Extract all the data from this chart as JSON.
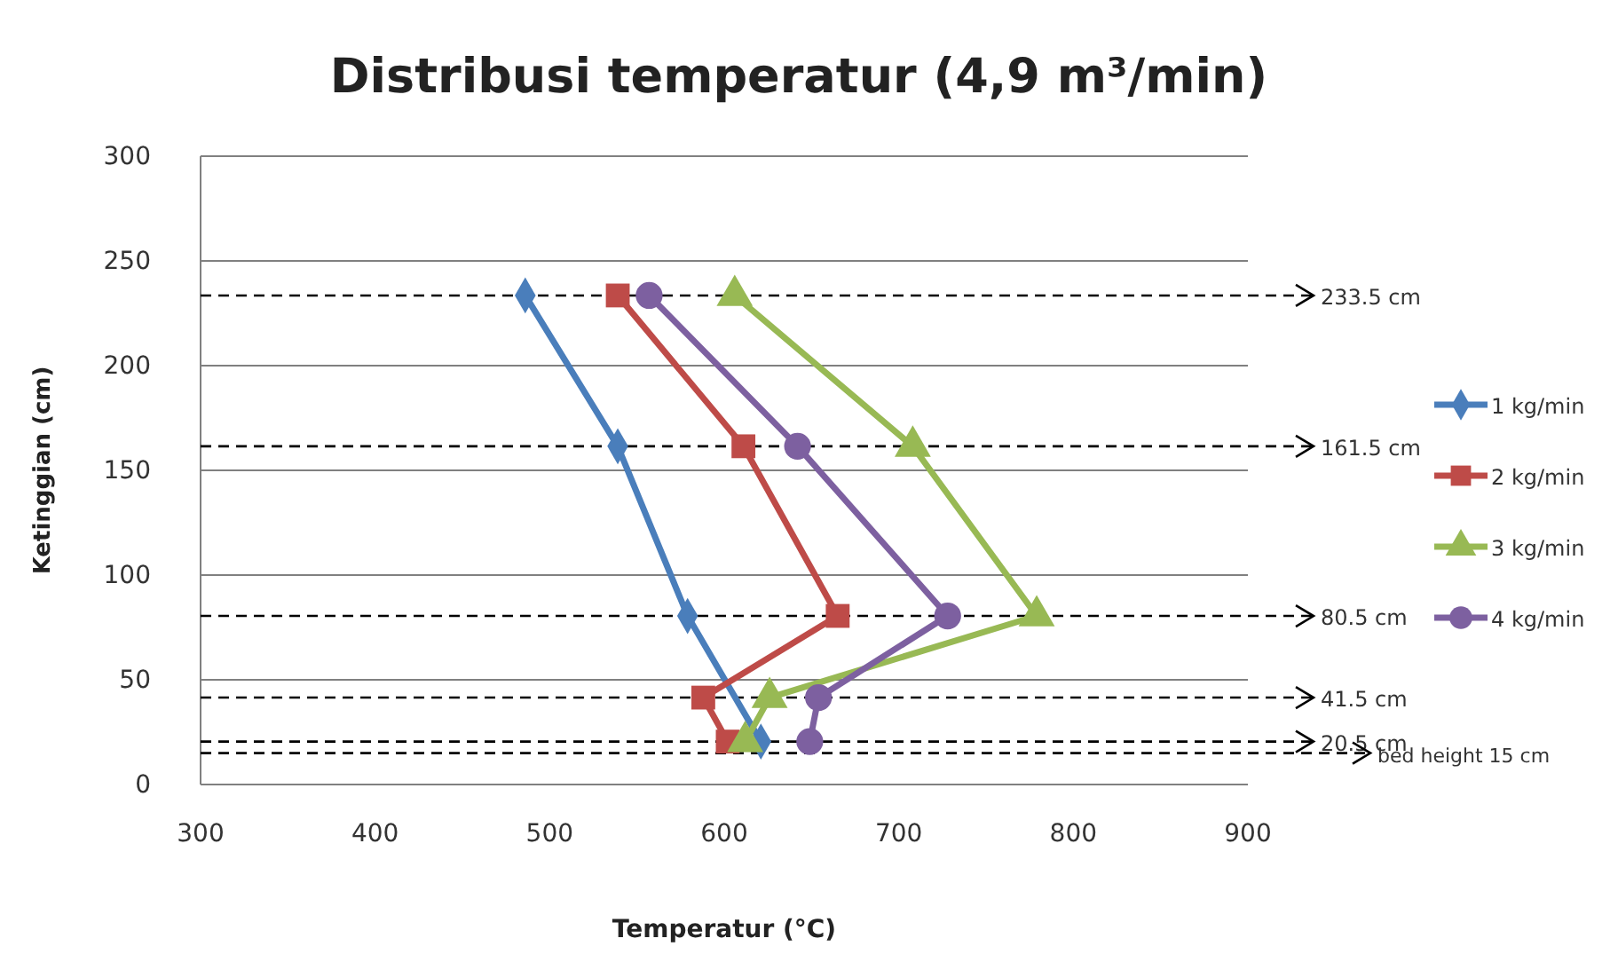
{
  "chart_data": {
    "type": "line",
    "title": "Distribusi temperatur (4,9 m³/min)",
    "xlabel": "Temperatur (°C)",
    "ylabel": "Ketinggian (cm)",
    "xlim": [
      300,
      900
    ],
    "xticks": [
      300,
      400,
      500,
      600,
      700,
      800,
      900
    ],
    "ylim": [
      0,
      300
    ],
    "yticks": [
      0,
      50,
      100,
      150,
      200,
      250,
      300
    ],
    "grid": "y",
    "legend": "right",
    "line_style": "solid",
    "series": [
      {
        "name": "1 kg/min",
        "color": "#4a7ebb",
        "marker": "diamond",
        "x": [
          486,
          539,
          579,
          585,
          621
        ],
        "values": [
          233.5,
          161.5,
          80.5,
          null,
          20.5
        ]
      },
      {
        "name": "2 kg/min",
        "color": "#be4b48",
        "marker": "square",
        "x": [
          539,
          611,
          665,
          588,
          602
        ],
        "values": [
          233.5,
          161.5,
          80.5,
          41.5,
          20.5
        ]
      },
      {
        "name": "3 kg/min",
        "color": "#98b954",
        "marker": "triangle",
        "x": [
          606,
          708,
          779,
          626,
          612
        ],
        "values": [
          233.5,
          161.5,
          80.5,
          41.5,
          20.5
        ]
      },
      {
        "name": "4 kg/min",
        "color": "#7d60a0",
        "marker": "circle",
        "x": [
          557,
          642,
          728,
          654,
          649
        ],
        "values": [
          233.5,
          161.5,
          80.5,
          41.5,
          20.5
        ]
      }
    ],
    "ref_lines": [
      {
        "axis": "y",
        "value": 233.5,
        "label": "233.5 cm",
        "line_style": "dashed",
        "color": "#000000"
      },
      {
        "axis": "y",
        "value": 161.5,
        "label": "161.5 cm",
        "line_style": "dashed",
        "color": "#000000"
      },
      {
        "axis": "y",
        "value": 80.5,
        "label": "80.5 cm",
        "line_style": "dashed",
        "color": "#000000"
      },
      {
        "axis": "y",
        "value": 41.5,
        "label": "41.5 cm",
        "line_style": "dashed",
        "color": "#000000"
      },
      {
        "axis": "y",
        "value": 20.5,
        "label": "20.5 cm",
        "line_style": "dashed",
        "color": "#000000"
      },
      {
        "axis": "y",
        "value": 15,
        "label": "bed height 15 cm",
        "line_style": "dashed",
        "color": "#000000"
      }
    ]
  }
}
